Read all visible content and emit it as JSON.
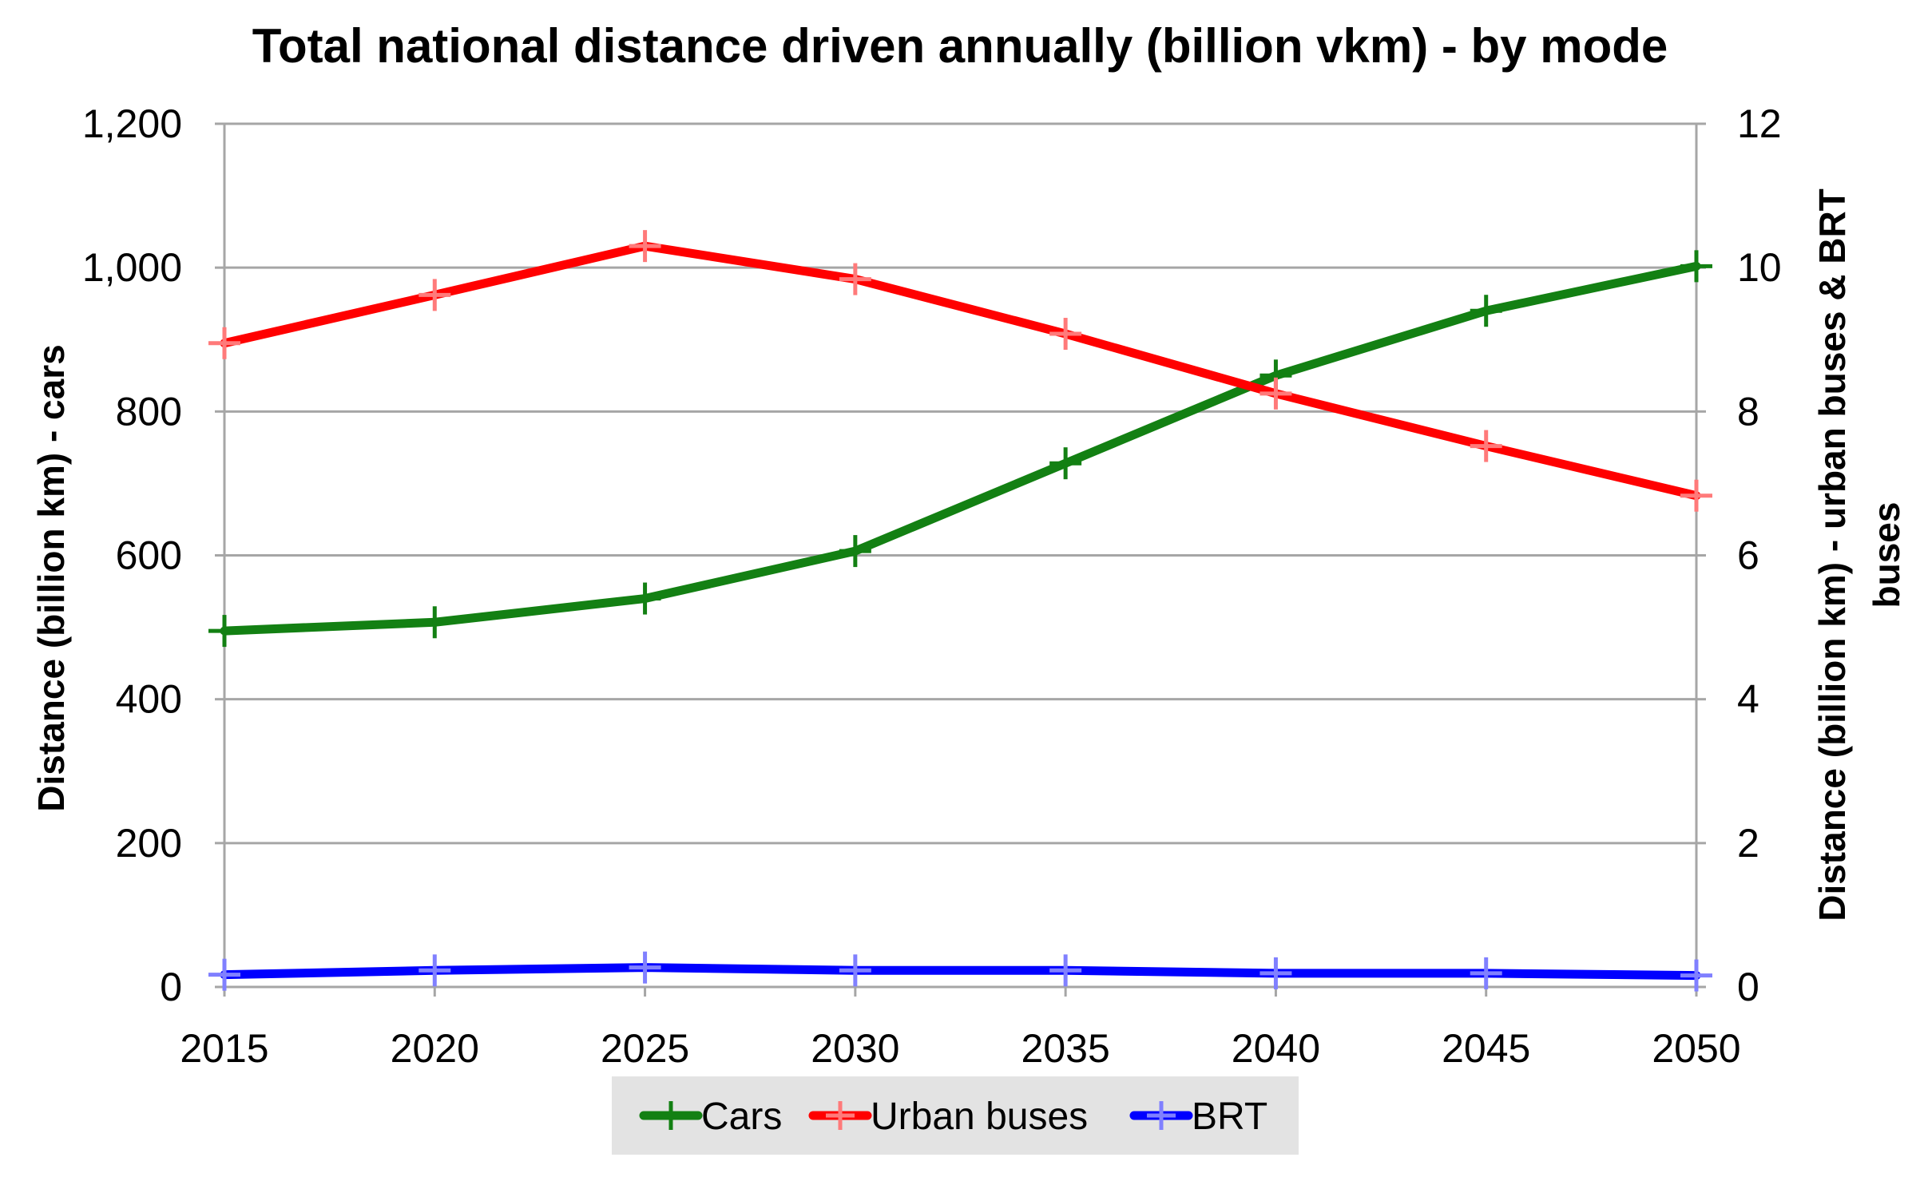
{
  "chart_data": {
    "type": "line",
    "title": "Total national distance driven annually (billion vkm) - by mode",
    "xlabel": "",
    "ylabel": "Distance (billion km) - cars",
    "y2label_line1": "Distance (billion km) - urban buses & BRT",
    "y2label_line2": "buses",
    "x": [
      "2015",
      "2020",
      "2025",
      "2030",
      "2035",
      "2040",
      "2045",
      "2050"
    ],
    "ylim": [
      0,
      1200
    ],
    "y2lim": [
      0,
      12
    ],
    "yticks": [
      "0",
      "200",
      "400",
      "600",
      "800",
      "1,000",
      "1,200"
    ],
    "y2ticks": [
      "0",
      "2",
      "4",
      "6",
      "8",
      "10",
      "12"
    ],
    "grid": true,
    "legend_position": "bottom",
    "series": [
      {
        "name": "Cars",
        "axis": "left",
        "color": "#138013",
        "marker_color": "#138013",
        "values": [
          495,
          507,
          540,
          606,
          728,
          850,
          940,
          1002
        ]
      },
      {
        "name": "Urban buses",
        "axis": "right",
        "color": "#ff0000",
        "marker_color": "#ff7a7a",
        "values": [
          8.95,
          9.62,
          10.3,
          9.84,
          9.08,
          8.25,
          7.52,
          6.83
        ]
      },
      {
        "name": "BRT",
        "axis": "right",
        "color": "#0000ff",
        "marker_color": "#8080ff",
        "values": [
          0.17,
          0.23,
          0.27,
          0.23,
          0.23,
          0.19,
          0.19,
          0.16
        ]
      }
    ]
  }
}
